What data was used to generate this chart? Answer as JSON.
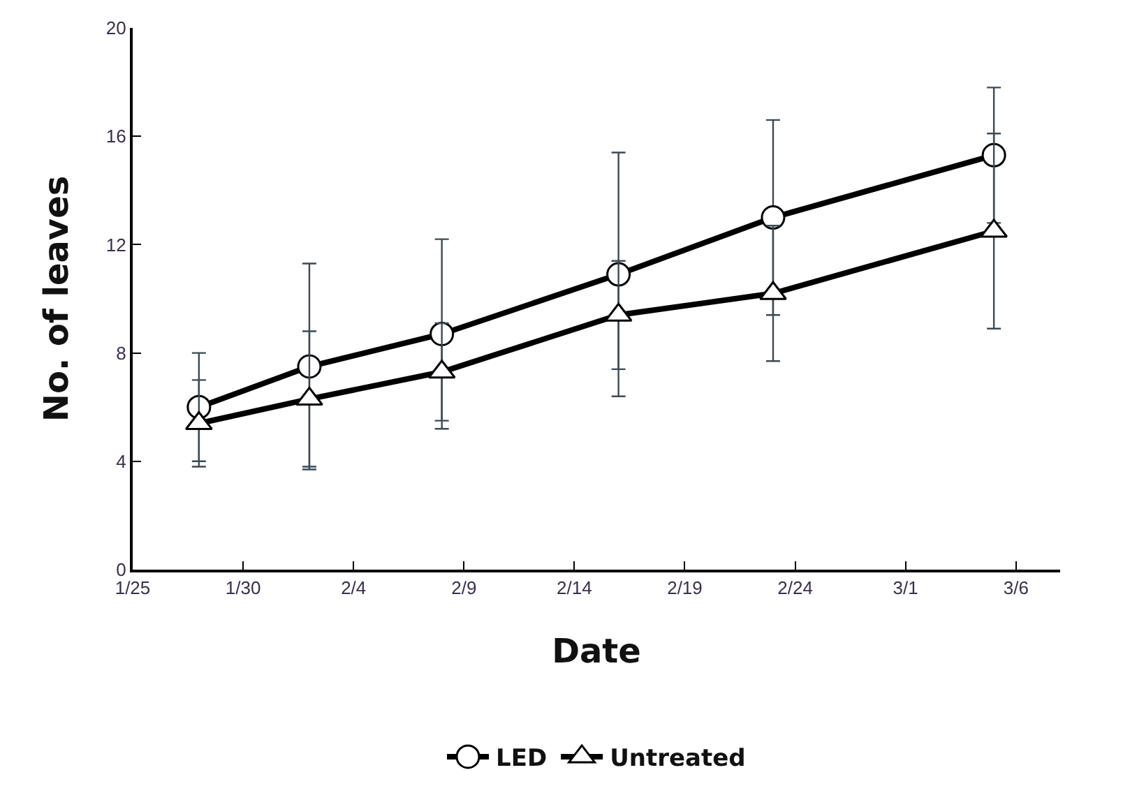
{
  "chart_data": {
    "type": "line",
    "xlabel": "Date",
    "ylabel": "No. of leaves",
    "x": [
      "--01-28",
      "--02-02",
      "--02-08",
      "--02-16",
      "--02-23",
      "--03-05"
    ],
    "series": [
      {
        "name": "LED",
        "color": "#000000",
        "marker": "circle",
        "values": [
          6.0,
          7.5,
          8.7,
          10.9,
          13.0,
          15.3
        ],
        "errors": [
          2.0,
          3.8,
          3.5,
          4.5,
          3.6,
          2.5
        ]
      },
      {
        "name": "Untreated",
        "color": "#000000",
        "marker": "triangle",
        "values": [
          5.4,
          6.3,
          7.3,
          9.4,
          10.2,
          12.5
        ],
        "errors": [
          1.6,
          2.5,
          1.8,
          2.0,
          2.5,
          3.6
        ]
      }
    ],
    "xlim": [
      "--01-25",
      "--03-08"
    ],
    "xticks": [
      {
        "value": "--01-25",
        "label": "1/25"
      },
      {
        "value": "--01-30",
        "label": "1/30"
      },
      {
        "value": "--02-04",
        "label": "2/4"
      },
      {
        "value": "--02-09",
        "label": "2/9"
      },
      {
        "value": "--02-14",
        "label": "2/14"
      },
      {
        "value": "--02-19",
        "label": "2/19"
      },
      {
        "value": "--02-24",
        "label": "2/24"
      },
      {
        "value": "--03-01",
        "label": "3/1"
      },
      {
        "value": "--03-06",
        "label": "3/6"
      }
    ],
    "ylim": [
      0,
      20
    ],
    "yticks": [
      0,
      4,
      8,
      12,
      16,
      20
    ],
    "grid": false,
    "legend": "bottom",
    "line_style": "solid"
  }
}
